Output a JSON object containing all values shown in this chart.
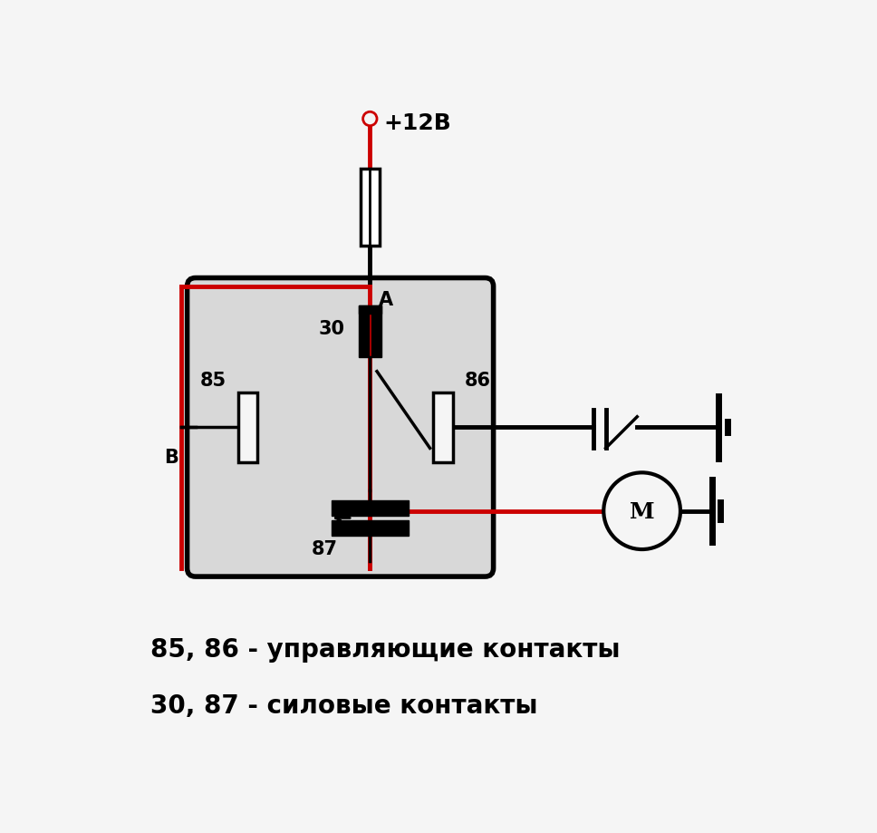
{
  "bg_color": "#f5f5f5",
  "relay_fill": "#d8d8d8",
  "text_color": "#000000",
  "red_color": "#cc0000",
  "white": "#ffffff",
  "label1": "85, 86 - управляющие контакты",
  "label2": "30, 87 - силовые контакты",
  "voltage_label": "+12В",
  "point_A_label": "A",
  "point_B_label": "B",
  "pin30": "30",
  "pin85": "85",
  "pin86": "86",
  "pin87": "87",
  "font_size_labels": 20,
  "font_size_pins": 15,
  "font_size_voltage": 18,
  "font_size_AB": 15,
  "font_size_M": 18
}
